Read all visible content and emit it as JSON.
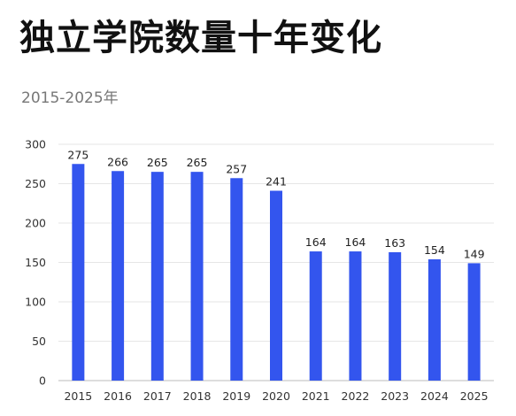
{
  "chart_data": {
    "type": "bar",
    "title": "独立学院数量十年变化",
    "subtitle": "2015-2025年",
    "categories": [
      "2015",
      "2016",
      "2017",
      "2018",
      "2019",
      "2020",
      "2021",
      "2022",
      "2023",
      "2024",
      "2025"
    ],
    "values": [
      275,
      266,
      265,
      265,
      257,
      241,
      164,
      164,
      163,
      154,
      149
    ],
    "ylim": [
      0,
      300
    ],
    "yticks": [
      0,
      50,
      100,
      150,
      200,
      250,
      300
    ],
    "grid": true,
    "bar_color": "#3355ee",
    "grid_color": "#e6e6e6"
  }
}
